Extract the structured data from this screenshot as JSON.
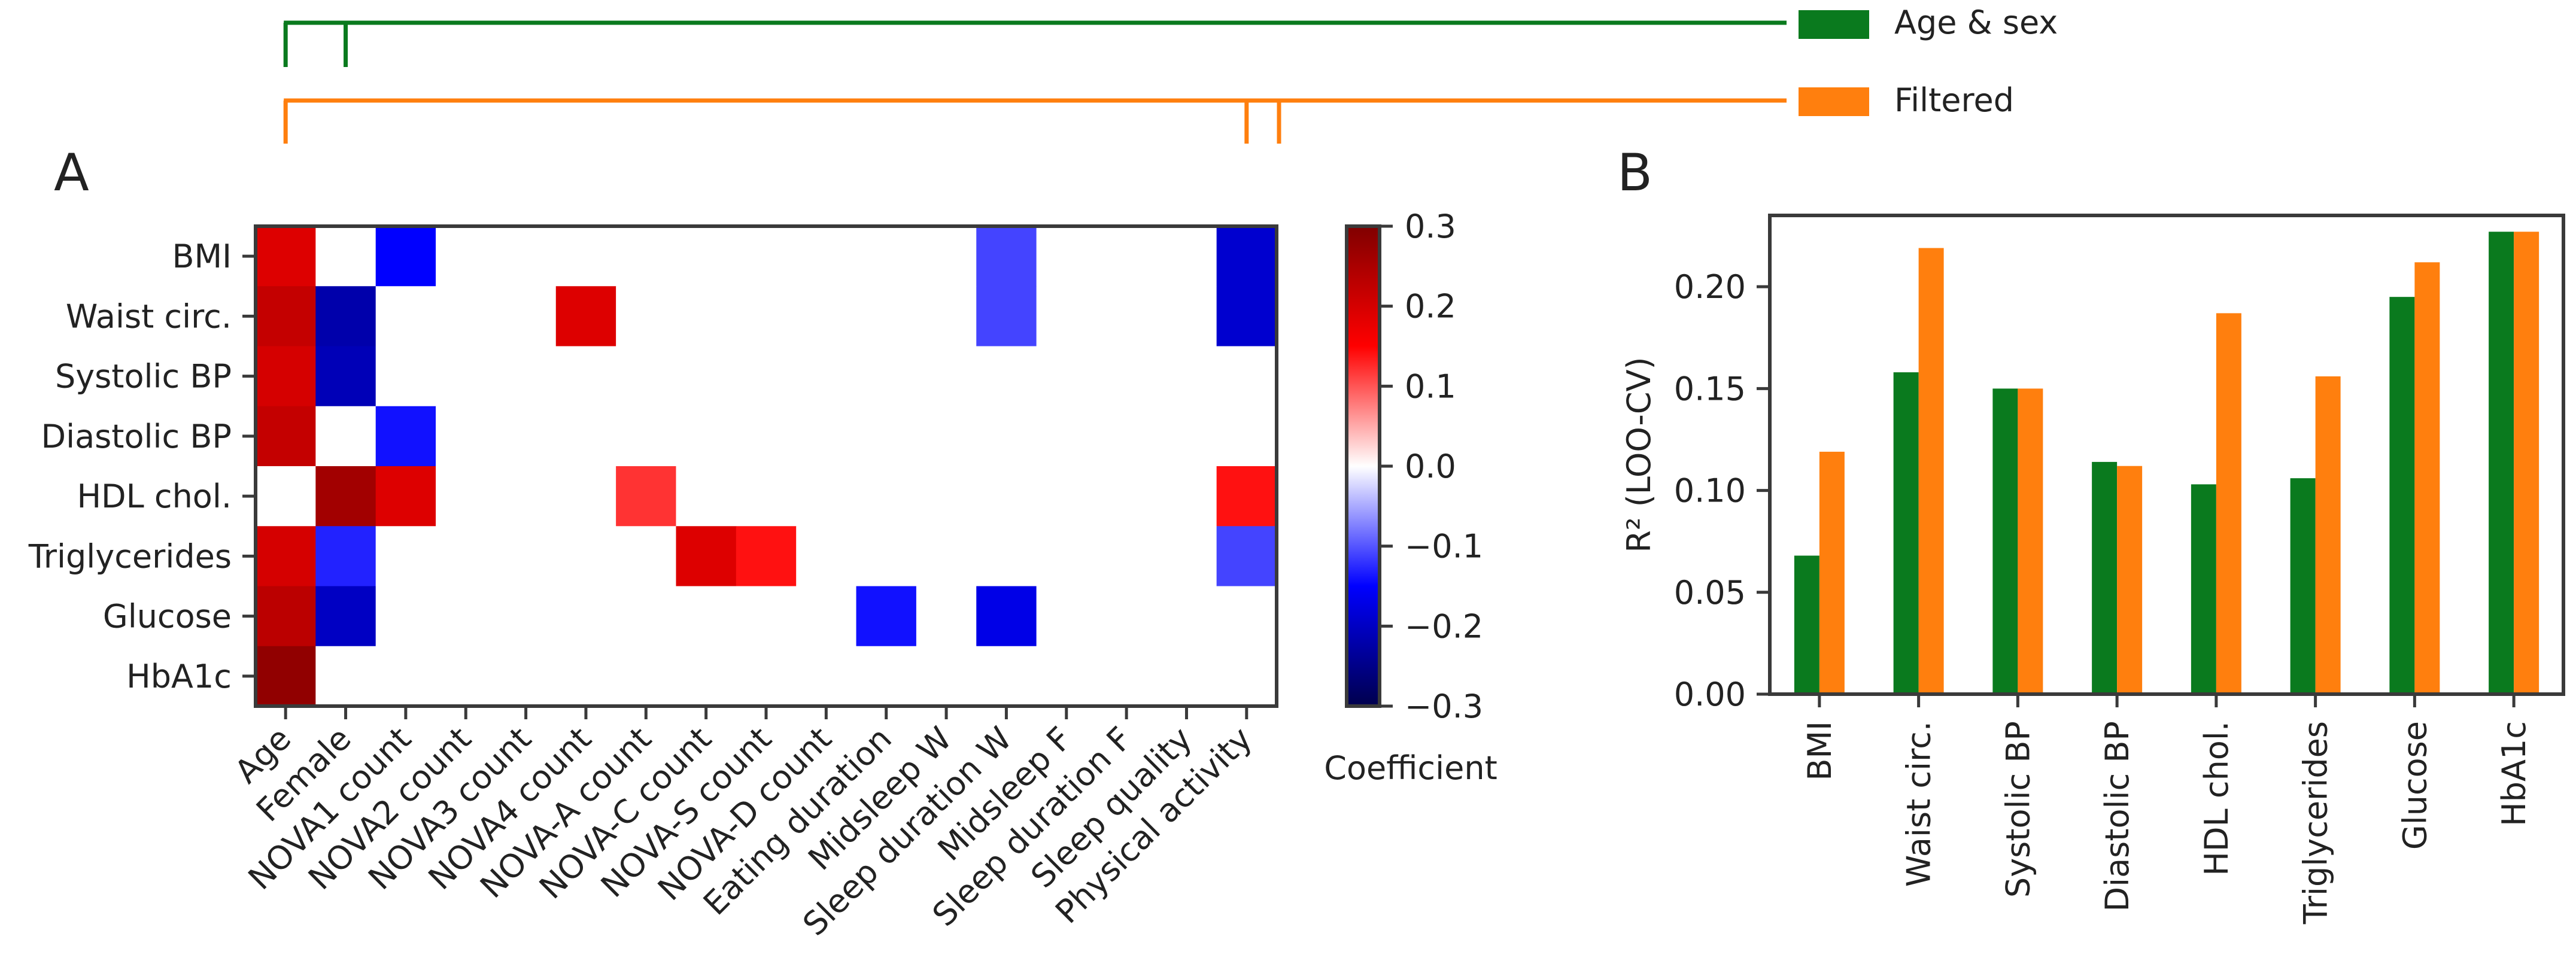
{
  "colors": {
    "age_sex": "#0a7a1e",
    "filtered": "#ff7f0e",
    "axis": "#3a3a3a",
    "text": "#222222"
  },
  "legend": {
    "items": [
      {
        "label": "Age & sex",
        "color": "#0a7a1e"
      },
      {
        "label": "Filtered",
        "color": "#ff7f0e"
      }
    ]
  },
  "panel_a": {
    "label": "A",
    "colorbar_label": "Coefficient"
  },
  "panel_b": {
    "label": "B"
  },
  "chart_data": [
    {
      "type": "heatmap",
      "panel": "A",
      "rows": [
        "BMI",
        "Waist circ.",
        "Systolic BP",
        "Diastolic BP",
        "HDL chol.",
        "Triglycerides",
        "Glucose",
        "HbA1c"
      ],
      "columns": [
        "Age",
        "Female",
        "NOVA1 count",
        "NOVA2 count",
        "NOVA3 count",
        "NOVA4 count",
        "NOVA-A count",
        "NOVA-C count",
        "NOVA-S count",
        "NOVA-D count",
        "Eating duration",
        "Midsleep W",
        "Sleep duration W",
        "Midsleep F",
        "Sleep duration F",
        "Sleep quality",
        "Physical activity"
      ],
      "values": [
        [
          0.19,
          0,
          -0.15,
          0,
          0,
          0,
          0,
          0,
          0,
          0,
          0,
          0,
          -0.11,
          0,
          0,
          0,
          -0.19
        ],
        [
          0.22,
          -0.22,
          0,
          0,
          0,
          0.19,
          0,
          0,
          0,
          0,
          0,
          0,
          -0.11,
          0,
          0,
          0,
          -0.19
        ],
        [
          0.2,
          -0.21,
          0,
          0,
          0,
          0,
          0,
          0,
          0,
          0,
          0,
          0,
          0,
          0,
          0,
          0,
          0
        ],
        [
          0.22,
          0,
          -0.14,
          0,
          0,
          0,
          0,
          0,
          0,
          0,
          0,
          0,
          0,
          0,
          0,
          0,
          0
        ],
        [
          0,
          0.26,
          0.19,
          0,
          0,
          0,
          0.12,
          0,
          0,
          0,
          0,
          0,
          0,
          0,
          0,
          0,
          0.14
        ],
        [
          0.2,
          -0.13,
          0,
          0,
          0,
          0,
          0,
          0.19,
          0.14,
          0,
          0,
          0,
          0,
          0,
          0,
          0,
          -0.11
        ],
        [
          0.23,
          -0.2,
          0,
          0,
          0,
          0,
          0,
          0,
          0,
          0,
          -0.14,
          0,
          -0.17,
          0,
          0,
          0,
          0
        ],
        [
          0.28,
          0,
          0,
          0,
          0,
          0,
          0,
          0,
          0,
          0,
          0,
          0,
          0,
          0,
          0,
          0,
          0
        ]
      ],
      "colorbar": {
        "label": "Coefficient",
        "range": [
          -0.3,
          0.3
        ],
        "ticks": [
          "0.3",
          "0.2",
          "0.1",
          "0.0",
          "−0.1",
          "−0.2",
          "−0.3"
        ],
        "tick_values": [
          0.3,
          0.2,
          0.1,
          0.0,
          -0.1,
          -0.2,
          -0.3
        ]
      },
      "brackets": [
        {
          "name": "Age & sex",
          "columns": [
            "Age",
            "Female"
          ]
        },
        {
          "name": "Filtered",
          "columns": [
            "Age",
            "Physical activity"
          ]
        }
      ]
    },
    {
      "type": "bar",
      "panel": "B",
      "categories": [
        "BMI",
        "Waist circ.",
        "Systolic BP",
        "Diastolic BP",
        "HDL chol.",
        "Triglycerides",
        "Glucose",
        "HbA1c"
      ],
      "series": [
        {
          "name": "Age & sex",
          "values": [
            0.068,
            0.158,
            0.15,
            0.114,
            0.103,
            0.106,
            0.195,
            0.227
          ]
        },
        {
          "name": "Filtered",
          "values": [
            0.119,
            0.219,
            0.15,
            0.112,
            0.187,
            0.156,
            0.212,
            0.227
          ]
        }
      ],
      "ylabel": "R² (LOO-CV)",
      "ylim": [
        0,
        0.235
      ],
      "yticks": [
        "0.00",
        "0.05",
        "0.10",
        "0.15",
        "0.20"
      ],
      "ytick_values": [
        0,
        0.05,
        0.1,
        0.15,
        0.2
      ]
    }
  ]
}
